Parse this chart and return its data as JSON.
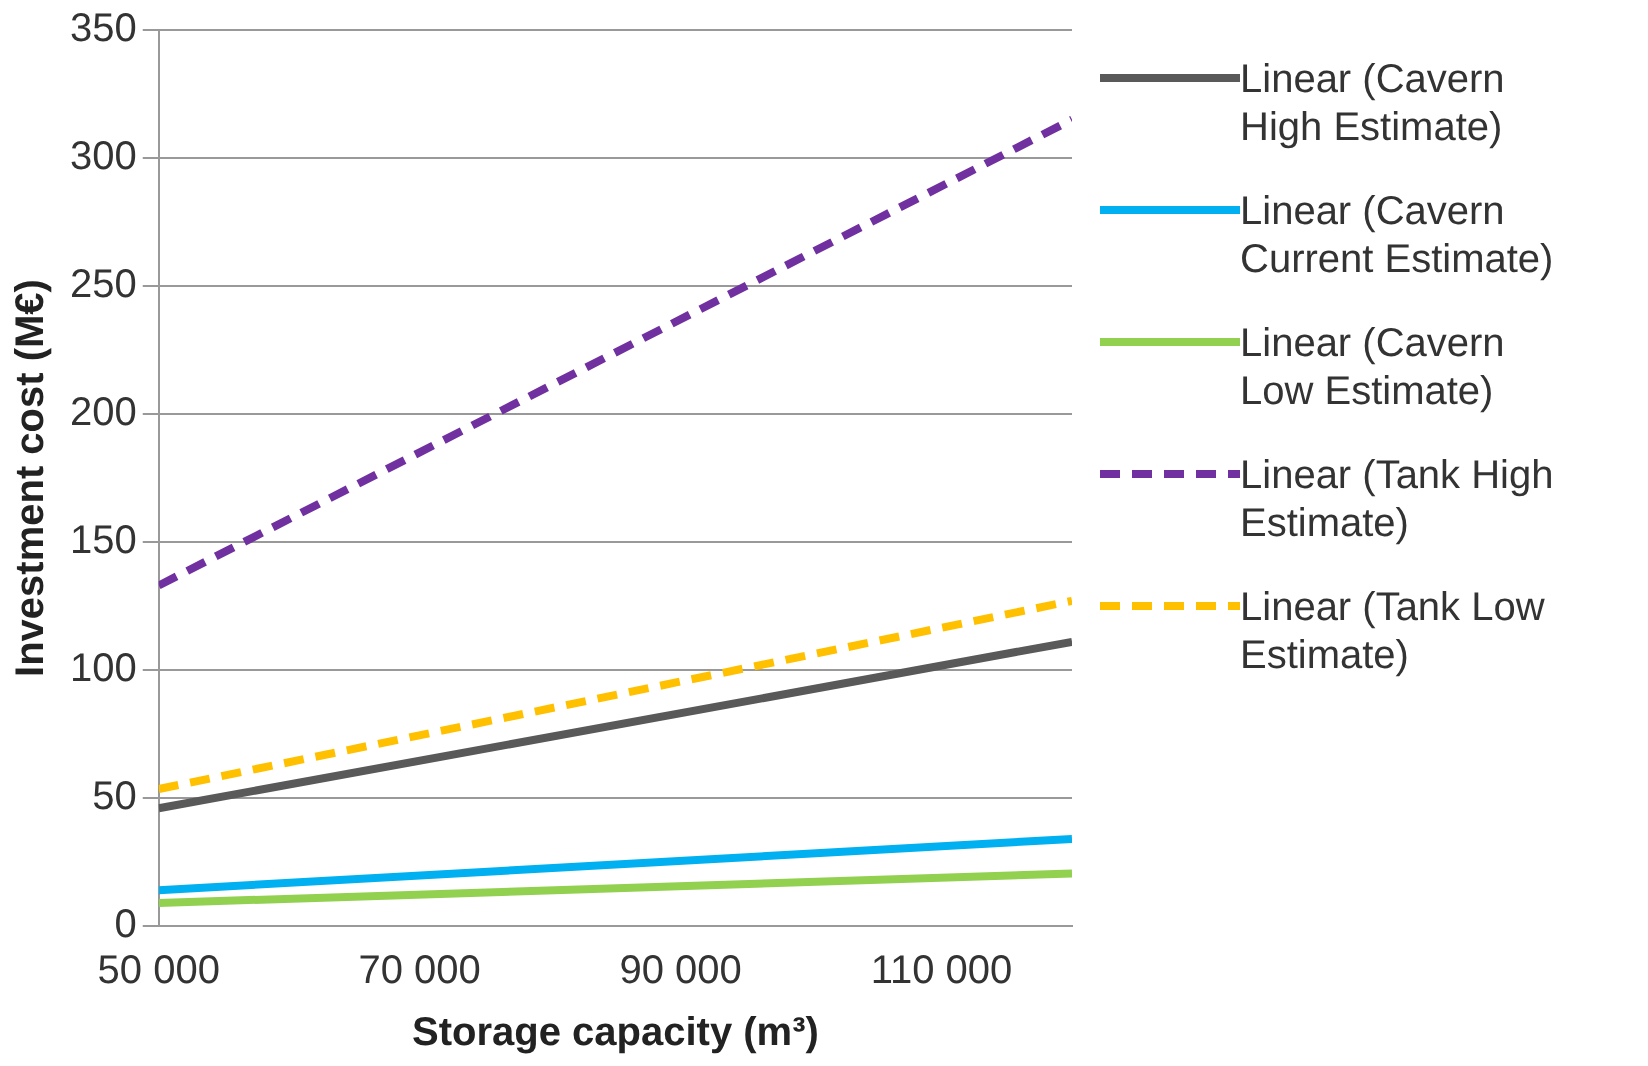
{
  "chart_data": {
    "type": "line",
    "xlabel": "Storage capacity (m³)",
    "ylabel": "Investment cost (M€)",
    "x": [
      50000,
      120000
    ],
    "xlim": [
      50000,
      120000
    ],
    "xticks": [
      {
        "value": 50000,
        "label": "50 000"
      },
      {
        "value": 70000,
        "label": "70 000"
      },
      {
        "value": 90000,
        "label": "90 000"
      },
      {
        "value": 110000,
        "label": "110 000"
      }
    ],
    "ylim": [
      0,
      350
    ],
    "yticks": [
      0,
      50,
      100,
      150,
      200,
      250,
      300,
      350
    ],
    "grid": "y",
    "legend": "right",
    "marker": "none",
    "series": [
      {
        "name": "Linear (Cavern High Estimate)",
        "color": "#595959",
        "line_style": "solid",
        "values": [
          46,
          111
        ]
      },
      {
        "name": "Linear (Cavern Current Estimate)",
        "color": "#00b0f0",
        "line_style": "solid",
        "values": [
          14,
          34
        ]
      },
      {
        "name": "Linear (Cavern Low Estimate)",
        "color": "#92d050",
        "line_style": "solid",
        "values": [
          9,
          20.5
        ]
      },
      {
        "name": "Linear (Tank High Estimate)",
        "color": "#7030a0",
        "line_style": "dashed",
        "values": [
          133,
          315
        ]
      },
      {
        "name": "Linear (Tank Low Estimate)",
        "color": "#ffc000",
        "line_style": "dashed",
        "values": [
          53.5,
          127
        ]
      }
    ]
  }
}
